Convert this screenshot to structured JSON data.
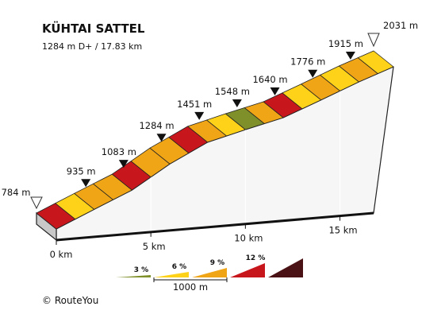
{
  "title": "KÜHTAI SATTEL",
  "subtitle": "1284 m D+ / 17.83 km",
  "copyright": "©  RouteYou",
  "chart_data": {
    "type": "area",
    "title": "KÜHTAI SATTEL",
    "total_ascent_m": 1284,
    "distance_km": 17.83,
    "x_ticks": [
      {
        "km": 0,
        "label": "0 km"
      },
      {
        "km": 5,
        "label": "5 km"
      },
      {
        "km": 10,
        "label": "10 km"
      },
      {
        "km": 15,
        "label": "15 km"
      }
    ],
    "elevation_markers": [
      {
        "km": 0,
        "elevation_m": 784,
        "label": "784 m",
        "marker": "start"
      },
      {
        "km": 2,
        "elevation_m": 935,
        "label": "935 m",
        "marker": "arrow"
      },
      {
        "km": 4,
        "elevation_m": 1083,
        "label": "1083 m",
        "marker": "arrow"
      },
      {
        "km": 6,
        "elevation_m": 1284,
        "label": "1284 m",
        "marker": "arrow"
      },
      {
        "km": 8,
        "elevation_m": 1451,
        "label": "1451 m",
        "marker": "arrow"
      },
      {
        "km": 10,
        "elevation_m": 1548,
        "label": "1548 m",
        "marker": "arrow"
      },
      {
        "km": 12,
        "elevation_m": 1640,
        "label": "1640 m",
        "marker": "arrow"
      },
      {
        "km": 14,
        "elevation_m": 1776,
        "label": "1776 m",
        "marker": "arrow"
      },
      {
        "km": 16,
        "elevation_m": 1915,
        "label": "1915 m",
        "marker": "arrow"
      },
      {
        "km": 17.83,
        "elevation_m": 2031,
        "label": "2031 m",
        "marker": "summit"
      }
    ],
    "segments": [
      {
        "from_km": 0,
        "to_km": 1,
        "gradient_class": 12
      },
      {
        "from_km": 1,
        "to_km": 2,
        "gradient_class": 6
      },
      {
        "from_km": 2,
        "to_km": 3,
        "gradient_class": 9
      },
      {
        "from_km": 3,
        "to_km": 4,
        "gradient_class": 9
      },
      {
        "from_km": 4,
        "to_km": 5,
        "gradient_class": 12
      },
      {
        "from_km": 5,
        "to_km": 6,
        "gradient_class": 9
      },
      {
        "from_km": 6,
        "to_km": 7,
        "gradient_class": 9
      },
      {
        "from_km": 7,
        "to_km": 8,
        "gradient_class": 12
      },
      {
        "from_km": 8,
        "to_km": 9,
        "gradient_class": 9
      },
      {
        "from_km": 9,
        "to_km": 10,
        "gradient_class": 6
      },
      {
        "from_km": 10,
        "to_km": 11,
        "gradient_class": 3
      },
      {
        "from_km": 11,
        "to_km": 12,
        "gradient_class": 9
      },
      {
        "from_km": 12,
        "to_km": 13,
        "gradient_class": 12
      },
      {
        "from_km": 13,
        "to_km": 14,
        "gradient_class": 6
      },
      {
        "from_km": 14,
        "to_km": 15,
        "gradient_class": 9
      },
      {
        "from_km": 15,
        "to_km": 16,
        "gradient_class": 6
      },
      {
        "from_km": 16,
        "to_km": 17,
        "gradient_class": 9
      },
      {
        "from_km": 17,
        "to_km": 17.83,
        "gradient_class": 6
      }
    ],
    "legend": {
      "items": [
        {
          "label": "3 %",
          "color": "#7f8f2a"
        },
        {
          "label": "6 %",
          "color": "#ffd21a"
        },
        {
          "label": "9 %",
          "color": "#f0a516"
        },
        {
          "label": "12 %",
          "color": "#c8161d"
        },
        {
          "label": "",
          "color": "#4a1214"
        }
      ],
      "scale_label": "1000 m"
    }
  }
}
